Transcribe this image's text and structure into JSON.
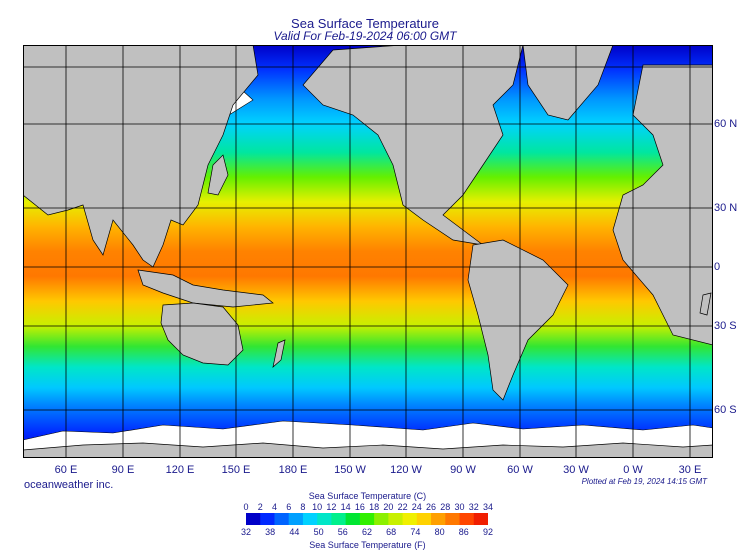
{
  "header": {
    "title": "Sea Surface Temperature",
    "subtitle": "Valid For Feb-19-2024 06:00 GMT"
  },
  "map": {
    "projection": "Mercator",
    "lon_labels": [
      "60 E",
      "90 E",
      "120 E",
      "150 E",
      "180 E",
      "150 W",
      "120 W",
      "90 W",
      "60 W",
      "30 W",
      "0 W",
      "30 E"
    ],
    "lat_labels": [
      "60 N",
      "30 N",
      "0",
      "30 S",
      "60 S"
    ],
    "land_color": "#c0c0c0",
    "ice_color": "#ffffff"
  },
  "footer": {
    "credit": "oceanweather inc.",
    "plotted": "Plotted at Feb 19, 2024 14:15 GMT"
  },
  "colorbar": {
    "title_c": "Sea Surface Temperature (C)",
    "title_f": "Sea Surface Temperature (F)",
    "ticks_c": [
      "0",
      "2",
      "4",
      "6",
      "8",
      "10",
      "12",
      "14",
      "16",
      "18",
      "20",
      "22",
      "24",
      "26",
      "28",
      "30",
      "32",
      "34"
    ],
    "ticks_f": [
      "32",
      "38",
      "44",
      "50",
      "56",
      "62",
      "68",
      "74",
      "80",
      "86",
      "92"
    ],
    "colors": [
      "#0000c8",
      "#0028ff",
      "#0064ff",
      "#00a0ff",
      "#00d2ff",
      "#00e6c8",
      "#00f08c",
      "#00e632",
      "#32f000",
      "#8cf000",
      "#c8f000",
      "#f0f000",
      "#ffd200",
      "#ffa000",
      "#ff7800",
      "#ff4600",
      "#f01e00"
    ]
  }
}
